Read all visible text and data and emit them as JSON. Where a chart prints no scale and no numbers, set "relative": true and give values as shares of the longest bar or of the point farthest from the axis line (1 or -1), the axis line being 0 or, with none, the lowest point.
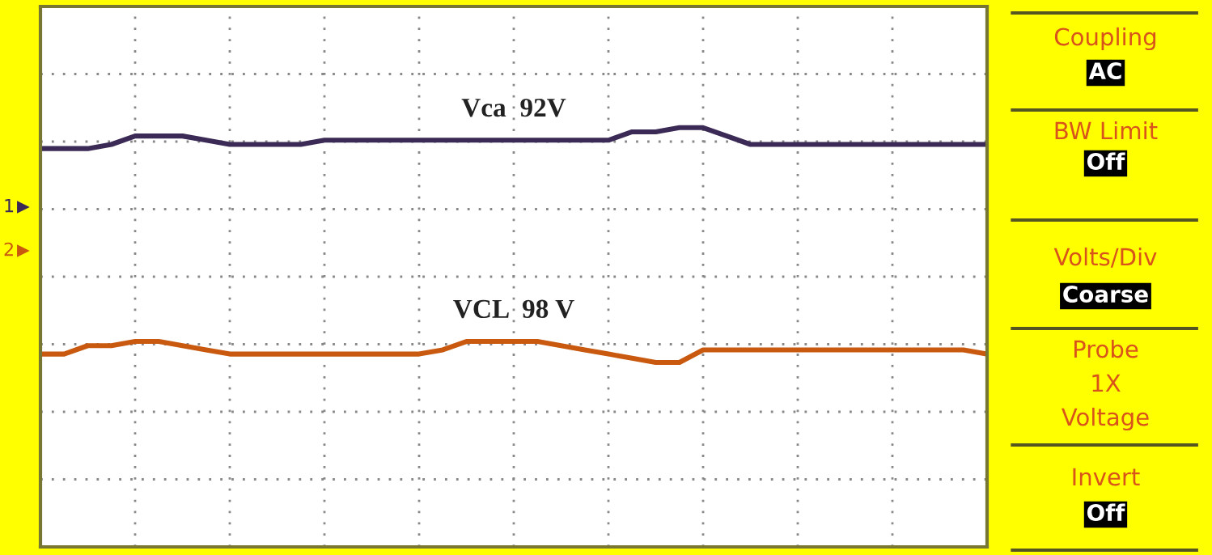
{
  "chart_data": [
    {
      "type": "line",
      "relative": true,
      "grid": true,
      "marker": "none",
      "line_style": "solid",
      "categories": [
        null,
        null,
        null,
        null,
        null,
        null,
        null,
        null,
        null,
        null,
        null,
        null,
        null,
        null,
        null,
        null,
        null,
        null,
        null,
        null,
        null,
        null,
        null,
        null,
        null,
        null,
        null,
        null,
        null,
        null,
        null,
        null,
        null,
        null,
        null,
        null,
        null,
        null,
        null,
        null,
        null
      ],
      "series": [
        {
          "name": "Vca  92V",
          "color": "#3b2a55",
          "values": [
            0.95,
            0.95,
            0.95,
            0.96,
            0.98,
            0.98,
            0.98,
            0.97,
            0.96,
            0.96,
            0.96,
            0.96,
            0.97,
            0.97,
            0.97,
            0.97,
            0.97,
            0.97,
            0.97,
            0.97,
            0.97,
            0.97,
            0.97,
            0.97,
            0.97,
            0.99,
            0.99,
            1,
            1,
            0.98,
            0.96,
            0.96,
            0.96,
            0.96,
            0.96,
            0.96,
            0.96,
            0.96,
            0.96,
            0.96,
            0.96
          ]
        },
        {
          "name": "VCL  98 V",
          "color": "#c8590f",
          "values": [
            0.46,
            0.46,
            0.48,
            0.48,
            0.49,
            0.49,
            0.48,
            0.47,
            0.46,
            0.46,
            0.46,
            0.46,
            0.46,
            0.46,
            0.46,
            0.46,
            0.46,
            0.47,
            0.49,
            0.49,
            0.49,
            0.49,
            0.48,
            0.47,
            0.46,
            0.45,
            0.44,
            0.44,
            0.47,
            0.47,
            0.47,
            0.47,
            0.47,
            0.47,
            0.47,
            0.47,
            0.47,
            0.47,
            0.47,
            0.47,
            0.46
          ]
        }
      ],
      "annotations": [
        "1",
        "2"
      ]
    },
    {
      "type": "other",
      "annotations": [
        "Coupling",
        "AC",
        "BW Limit",
        "Off",
        "Volts/Div",
        "Coarse",
        "Probe",
        "1X",
        "Voltage",
        "Invert",
        "Off"
      ]
    }
  ]
}
